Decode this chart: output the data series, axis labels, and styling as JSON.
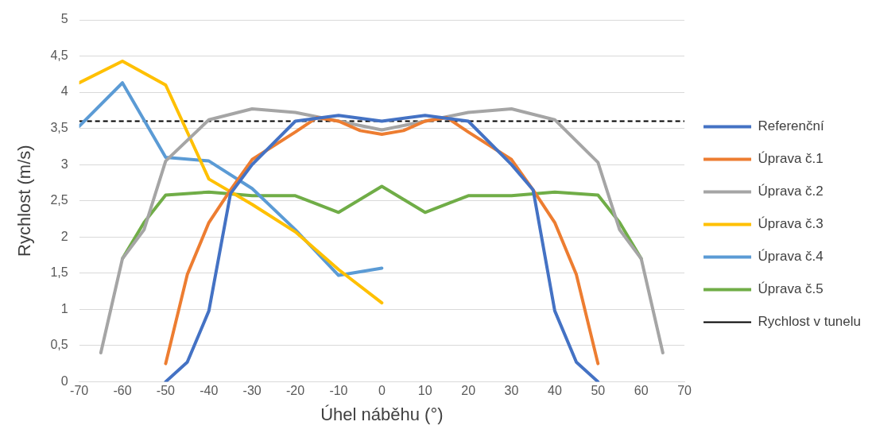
{
  "chart_data": {
    "type": "line",
    "xlabel": "Úhel náběhu (°)",
    "ylabel": "Rychlost (m/s)",
    "xlim": [
      -70,
      70
    ],
    "xticks": [
      -70,
      -60,
      -50,
      -40,
      -30,
      -20,
      -10,
      0,
      10,
      20,
      30,
      40,
      50,
      60,
      70
    ],
    "ylim": [
      0,
      5
    ],
    "yticks": [
      0,
      {
        "value": 0.5,
        "label": "0,5"
      },
      1,
      {
        "value": 1.5,
        "label": "1,5"
      },
      2,
      {
        "value": 2.5,
        "label": "2,5"
      },
      3,
      {
        "value": 3.5,
        "label": "3,5"
      },
      4,
      {
        "value": 4.5,
        "label": "4,5"
      },
      5
    ],
    "grid": "y",
    "legend": "right",
    "marker": "none",
    "line_style": "solid",
    "series": [
      {
        "name": "Referenční",
        "color": "#4472c4",
        "x": [
          -50,
          -45,
          -40,
          -35,
          -30,
          -20,
          -10,
          0,
          10,
          20,
          30,
          35,
          40,
          45,
          50
        ],
        "values": [
          0,
          0.27,
          0.98,
          2.6,
          3.0,
          3.6,
          3.68,
          3.6,
          3.68,
          3.6,
          3.0,
          2.65,
          0.98,
          0.27,
          0
        ]
      },
      {
        "name": "Úprava č.1",
        "color": "#ed7d31",
        "x": [
          -50,
          -45,
          -40,
          -35,
          -30,
          -20,
          -15,
          -10,
          -5,
          0,
          5,
          10,
          15,
          20,
          30,
          35,
          40,
          45,
          50
        ],
        "values": [
          0.25,
          1.48,
          2.2,
          2.65,
          3.07,
          3.45,
          3.65,
          3.6,
          3.47,
          3.42,
          3.47,
          3.6,
          3.65,
          3.45,
          3.07,
          2.65,
          2.2,
          1.48,
          0.25
        ]
      },
      {
        "name": "Úprava č.2",
        "color": "#a5a5a5",
        "x": [
          -65,
          -60,
          -55,
          -50,
          -40,
          -30,
          -20,
          -10,
          0,
          10,
          20,
          30,
          40,
          50,
          55,
          60,
          65
        ],
        "values": [
          0.4,
          1.7,
          2.1,
          3.05,
          3.62,
          3.77,
          3.72,
          3.6,
          3.48,
          3.6,
          3.72,
          3.77,
          3.62,
          3.03,
          2.1,
          1.7,
          0.4
        ]
      },
      {
        "name": "Úprava č.3",
        "color": "#ffc000",
        "x": [
          -70,
          -60,
          -50,
          -40,
          -30,
          -20,
          -10,
          0
        ],
        "values": [
          4.13,
          4.43,
          4.1,
          2.8,
          2.45,
          2.07,
          1.55,
          1.09
        ]
      },
      {
        "name": "Úprava č.4",
        "color": "#5b9bd5",
        "x": [
          -70,
          -60,
          -50,
          -40,
          -30,
          -20,
          -10,
          0
        ],
        "values": [
          3.53,
          4.13,
          3.1,
          3.05,
          2.67,
          2.1,
          1.47,
          1.57
        ]
      },
      {
        "name": "Úprava č.5",
        "color": "#70ad47",
        "x": [
          -60,
          -55,
          -50,
          -40,
          -30,
          -20,
          -10,
          0,
          10,
          20,
          30,
          40,
          50,
          55,
          60
        ],
        "values": [
          1.7,
          2.2,
          2.58,
          2.62,
          2.57,
          2.57,
          2.34,
          2.7,
          2.34,
          2.57,
          2.57,
          2.62,
          2.58,
          2.2,
          1.7
        ]
      }
    ],
    "ref_lines": [
      {
        "axis": "y",
        "value": 3.6,
        "label": "Rychlost v tunelu",
        "color": "#000000",
        "line_style": "dashed"
      }
    ]
  }
}
